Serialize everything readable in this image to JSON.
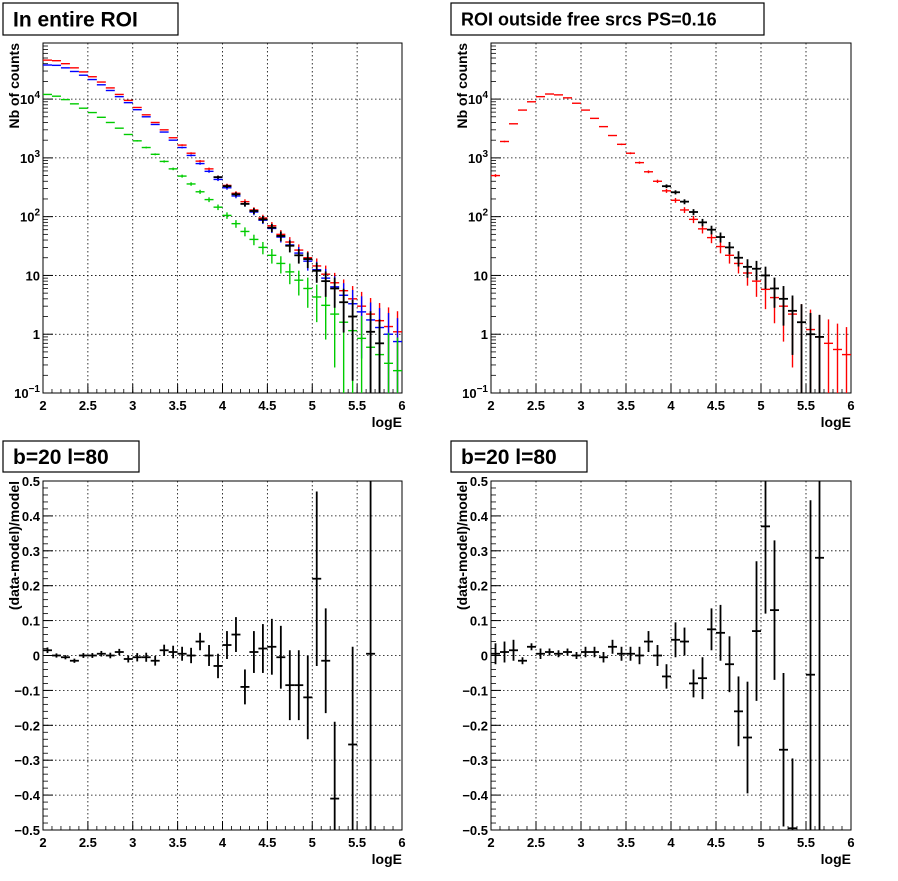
{
  "chart_data": [
    {
      "type": "scatter",
      "title": "In entire ROI",
      "xlabel": "logE",
      "ylabel": "Nb of counts",
      "xscale": "linear",
      "yscale": "log",
      "xlim": [
        2,
        6
      ],
      "ylim": [
        0.1,
        90000
      ],
      "grid": true,
      "x_ticks": [
        "2",
        "2.5",
        "3",
        "3.5",
        "4",
        "4.5",
        "5",
        "5.5",
        "6"
      ],
      "y_ticks": [
        {
          "value": 0.1,
          "base": "10",
          "exp": "−1"
        },
        {
          "value": 1,
          "label": "1"
        },
        {
          "value": 10,
          "label": "10"
        },
        {
          "value": 100,
          "base": "10",
          "exp": "2"
        },
        {
          "value": 1000,
          "base": "10",
          "exp": "3"
        },
        {
          "value": 10000,
          "base": "10",
          "exp": "4"
        }
      ],
      "series": [
        {
          "color": "#ff0000",
          "x": [
            2.05,
            2.15,
            2.25,
            2.35,
            2.45,
            2.55,
            2.65,
            2.75,
            2.85,
            2.95,
            3.05,
            3.15,
            3.25,
            3.35,
            3.45,
            3.55,
            3.65,
            3.75,
            3.85,
            3.95,
            4.05,
            4.15,
            4.25,
            4.35,
            4.45,
            4.55,
            4.65,
            4.75,
            4.85,
            4.95,
            5.05,
            5.15,
            5.25,
            5.35,
            5.45,
            5.55,
            5.65,
            5.75,
            5.85,
            5.95
          ],
          "y": [
            46000,
            45000,
            40000,
            34000,
            29000,
            24000,
            19500,
            15500,
            12000,
            9500,
            7200,
            5400,
            4000,
            3000,
            2200,
            1650,
            1200,
            880,
            650,
            470,
            340,
            250,
            180,
            130,
            95,
            70,
            50,
            37,
            27,
            20,
            14.5,
            10.5,
            7.5,
            5.5,
            4,
            3,
            2.2,
            1.7,
            1.35,
            1.1
          ]
        },
        {
          "color": "#0000ff",
          "x": [
            2.05,
            2.15,
            2.25,
            2.35,
            2.45,
            2.55,
            2.65,
            2.75,
            2.85,
            2.95,
            3.05,
            3.15,
            3.25,
            3.35,
            3.45,
            3.55,
            3.65,
            3.75,
            3.85,
            3.95,
            4.05,
            4.15,
            4.25,
            4.35,
            4.45,
            4.55,
            4.65,
            4.75,
            4.85,
            4.95,
            5.05,
            5.15,
            5.25,
            5.35,
            5.45,
            5.55,
            5.65,
            5.75,
            5.85,
            5.95
          ],
          "y": [
            38000,
            37500,
            34000,
            29500,
            25500,
            21500,
            17500,
            14000,
            11000,
            8700,
            6600,
            5000,
            3700,
            2750,
            2000,
            1500,
            1100,
            800,
            590,
            430,
            310,
            225,
            165,
            120,
            87,
            63,
            45,
            33,
            24,
            17.5,
            12.5,
            9,
            6.4,
            4.6,
            3.3,
            2.4,
            1.75,
            1.3,
            1,
            0.75
          ]
        },
        {
          "color": "#00cc00",
          "x": [
            2.05,
            2.15,
            2.25,
            2.35,
            2.45,
            2.55,
            2.65,
            2.75,
            2.85,
            2.95,
            3.05,
            3.15,
            3.25,
            3.35,
            3.45,
            3.55,
            3.65,
            3.75,
            3.85,
            3.95,
            4.05,
            4.15,
            4.25,
            4.35,
            4.45,
            4.55,
            4.65,
            4.75,
            4.85,
            4.95,
            5.05,
            5.15,
            5.25,
            5.35,
            5.45,
            5.55,
            5.65,
            5.75,
            5.85,
            5.95
          ],
          "y": [
            12000,
            11200,
            9800,
            8300,
            7000,
            5900,
            4900,
            4000,
            3200,
            2500,
            1950,
            1500,
            1150,
            870,
            650,
            490,
            360,
            265,
            195,
            145,
            105,
            76,
            56,
            41,
            30,
            22,
            16,
            11.5,
            8.3,
            6,
            4.3,
            3.1,
            2.2,
            1.6,
            1.15,
            0.85,
            0.6,
            0.45,
            0.32,
            0.24
          ]
        },
        {
          "color": "#000000",
          "x": [
            3.95,
            4.05,
            4.15,
            4.25,
            4.35,
            4.45,
            4.55,
            4.65,
            4.75,
            4.85,
            4.95,
            5.05,
            5.15,
            5.25,
            5.35,
            5.45,
            5.65,
            5.75
          ],
          "y": [
            470,
            330,
            240,
            165,
            125,
            90,
            65,
            47,
            32,
            22,
            19,
            12,
            8,
            6,
            3.5,
            2,
            1.1,
            0.7
          ]
        }
      ]
    },
    {
      "type": "scatter",
      "title": "ROI outside free srcs PS=0.16",
      "xlabel": "logE",
      "ylabel": "Nb of counts",
      "xscale": "linear",
      "yscale": "log",
      "xlim": [
        2,
        6
      ],
      "ylim": [
        0.1,
        90000
      ],
      "grid": true,
      "x_ticks": [
        "2",
        "2.5",
        "3",
        "3.5",
        "4",
        "4.5",
        "5",
        "5.5",
        "6"
      ],
      "y_ticks": [
        {
          "value": 0.1,
          "base": "10",
          "exp": "−1"
        },
        {
          "value": 1,
          "label": "1"
        },
        {
          "value": 10,
          "label": "10"
        },
        {
          "value": 100,
          "base": "10",
          "exp": "2"
        },
        {
          "value": 1000,
          "base": "10",
          "exp": "3"
        },
        {
          "value": 10000,
          "base": "10",
          "exp": "4"
        }
      ],
      "series": [
        {
          "color": "#ff0000",
          "x": [
            2.05,
            2.15,
            2.25,
            2.35,
            2.45,
            2.55,
            2.65,
            2.75,
            2.85,
            2.95,
            3.05,
            3.15,
            3.25,
            3.35,
            3.45,
            3.55,
            3.65,
            3.75,
            3.85,
            3.95,
            4.05,
            4.15,
            4.25,
            4.35,
            4.45,
            4.55,
            4.65,
            4.75,
            4.85,
            4.95,
            5.05,
            5.15,
            5.25,
            5.35,
            5.45,
            5.55,
            5.65,
            5.75,
            5.85,
            5.95
          ],
          "y": [
            500,
            1900,
            3800,
            6500,
            9000,
            11000,
            12200,
            11800,
            10500,
            8500,
            6500,
            4700,
            3400,
            2400,
            1700,
            1200,
            830,
            580,
            400,
            275,
            190,
            130,
            90,
            62,
            44,
            31,
            22,
            16,
            11,
            8,
            5.8,
            4.2,
            3,
            2.2,
            1.6,
            1.2,
            0.9,
            0.7,
            0.55,
            0.45
          ]
        },
        {
          "color": "#000000",
          "x": [
            3.95,
            4.05,
            4.15,
            4.25,
            4.35,
            4.45,
            4.55,
            4.65,
            4.75,
            4.85,
            4.95,
            5.05,
            5.15,
            5.25,
            5.35,
            5.45,
            5.55,
            5.65
          ],
          "y": [
            330,
            260,
            180,
            120,
            80,
            60,
            45,
            30,
            20,
            14,
            13,
            10,
            6,
            4,
            2.5,
            1.6,
            1,
            0.9
          ]
        }
      ]
    },
    {
      "type": "scatter",
      "title": "b=20 l=80",
      "xlabel": "logE",
      "ylabel": "(data-model)/model",
      "xlim": [
        2,
        6
      ],
      "ylim": [
        -0.5,
        0.5
      ],
      "grid": true,
      "x_ticks": [
        "2",
        "2.5",
        "3",
        "3.5",
        "4",
        "4.5",
        "5",
        "5.5",
        "6"
      ],
      "y_ticks": [
        "−0.5",
        "−0.4",
        "−0.3",
        "−0.2",
        "−0.1",
        "0",
        "0.1",
        "0.2",
        "0.3",
        "0.4",
        "0.5"
      ],
      "series": [
        {
          "color": "#000000",
          "x": [
            2.05,
            2.15,
            2.25,
            2.35,
            2.45,
            2.55,
            2.65,
            2.75,
            2.85,
            2.95,
            3.05,
            3.15,
            3.25,
            3.35,
            3.45,
            3.55,
            3.65,
            3.75,
            3.85,
            3.95,
            4.05,
            4.15,
            4.25,
            4.35,
            4.45,
            4.55,
            4.65,
            4.75,
            4.85,
            4.95,
            5.05,
            5.15,
            5.25,
            5.35,
            5.45,
            5.55,
            5.65
          ],
          "y": [
            0.015,
            0.0,
            -0.005,
            -0.015,
            0.0,
            0.0,
            0.005,
            0.0,
            0.01,
            -0.01,
            -0.005,
            -0.005,
            -0.015,
            0.015,
            0.01,
            0.005,
            0.0,
            0.04,
            0.0,
            -0.03,
            0.03,
            0.06,
            -0.09,
            0.01,
            0.02,
            0.025,
            -0.005,
            -0.085,
            -0.085,
            -0.12,
            0.22,
            -0.015,
            -0.41,
            null,
            -0.255,
            null,
            0.005
          ],
          "yerr": [
            0.008,
            0.006,
            0.006,
            0.006,
            0.007,
            0.007,
            0.008,
            0.008,
            0.009,
            0.01,
            0.012,
            0.013,
            0.014,
            0.016,
            0.018,
            0.02,
            0.022,
            0.025,
            0.03,
            0.035,
            0.04,
            0.05,
            0.05,
            0.06,
            0.07,
            0.08,
            0.09,
            0.1,
            0.1,
            0.12,
            0.25,
            0.15,
            0.22,
            null,
            0.28,
            null,
            0.6
          ]
        }
      ]
    },
    {
      "type": "scatter",
      "title": "b=20 l=80",
      "xlabel": "logE",
      "ylabel": "(data-model)/model",
      "xlim": [
        2,
        6
      ],
      "ylim": [
        -0.5,
        0.5
      ],
      "grid": true,
      "x_ticks": [
        "2",
        "2.5",
        "3",
        "3.5",
        "4",
        "4.5",
        "5",
        "5.5",
        "6"
      ],
      "y_ticks": [
        "−0.5",
        "−0.4",
        "−0.3",
        "−0.2",
        "−0.1",
        "0",
        "0.1",
        "0.2",
        "0.3",
        "0.4",
        "0.5"
      ],
      "series": [
        {
          "color": "#000000",
          "x": [
            2.05,
            2.15,
            2.25,
            2.35,
            2.45,
            2.55,
            2.65,
            2.75,
            2.85,
            2.95,
            3.05,
            3.15,
            3.25,
            3.35,
            3.45,
            3.55,
            3.65,
            3.75,
            3.85,
            3.95,
            4.05,
            4.15,
            4.25,
            4.35,
            4.45,
            4.55,
            4.65,
            4.75,
            4.85,
            4.95,
            5.05,
            5.15,
            5.25,
            5.35,
            5.45,
            5.55,
            5.65
          ],
          "y": [
            0.005,
            0.01,
            0.015,
            -0.015,
            0.025,
            0.005,
            0.01,
            0.005,
            0.01,
            0.0,
            0.01,
            0.01,
            -0.005,
            0.025,
            0.005,
            0.005,
            0.0,
            0.04,
            0.0,
            -0.06,
            0.045,
            0.04,
            -0.08,
            -0.065,
            0.075,
            0.065,
            -0.025,
            -0.16,
            -0.235,
            0.07,
            0.37,
            0.13,
            -0.27,
            -0.495,
            null,
            -0.055,
            0.28
          ],
          "yerr": [
            0.03,
            0.03,
            0.03,
            0.01,
            0.01,
            0.015,
            0.01,
            0.01,
            0.01,
            0.01,
            0.015,
            0.015,
            0.015,
            0.02,
            0.02,
            0.02,
            0.025,
            0.03,
            0.03,
            0.035,
            0.05,
            0.04,
            0.04,
            0.06,
            0.06,
            0.08,
            0.08,
            0.1,
            0.16,
            0.2,
            0.25,
            0.2,
            0.22,
            0.2,
            null,
            0.5,
            0.8
          ]
        }
      ]
    }
  ]
}
